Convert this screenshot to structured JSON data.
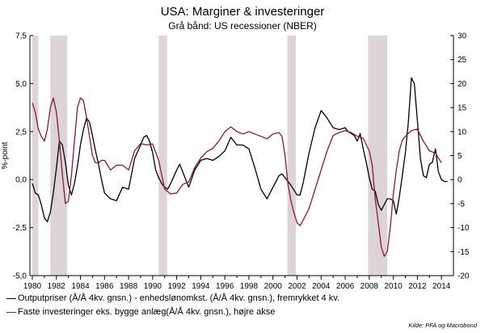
{
  "chart_data": {
    "type": "line",
    "title": "USA: Marginer & investeringer",
    "subtitle": "Grå bånd: US recessioner (NBER)",
    "ylabel_left": "%-point",
    "ylabel_right": "",
    "xlabel": "",
    "source": "Kilde: PFA og Macrobond",
    "xlim": [
      1979.8,
      2015.0
    ],
    "ylim_left": [
      -5.0,
      7.5
    ],
    "ylim_right": [
      -20,
      30
    ],
    "x_ticks": [
      1980,
      1982,
      1984,
      1986,
      1988,
      1990,
      1992,
      1994,
      1996,
      1998,
      2000,
      2002,
      2004,
      2006,
      2008,
      2010,
      2012,
      2014
    ],
    "y_ticks_left": [
      "7,5",
      "5,0",
      "2,5",
      "0,0",
      "-2,5",
      "-5,0"
    ],
    "y_ticks_right": [
      "30",
      "25",
      "20",
      "15",
      "10",
      "5",
      "0",
      "-5",
      "-10",
      "-15",
      "-20"
    ],
    "grid": "none",
    "legend_position": "bottom-left",
    "recessions": [
      [
        1980.0,
        1980.5
      ],
      [
        1981.5,
        1982.9
      ],
      [
        1990.5,
        1991.2
      ],
      [
        2001.2,
        2001.9
      ],
      [
        2007.9,
        2009.5
      ]
    ],
    "series": [
      {
        "name": "Outputpriser (Å/Å 4kv. gnsn.) - enhedslønomkst. (Å/Å 4kv. gnsn.), fremrykket 4 kv.",
        "axis": "left",
        "color": "#000000",
        "x": [
          1980.0,
          1980.25,
          1980.5,
          1980.75,
          1981.0,
          1981.25,
          1981.5,
          1981.75,
          1982.0,
          1982.25,
          1982.5,
          1982.75,
          1983.0,
          1983.25,
          1983.5,
          1983.75,
          1984.0,
          1984.25,
          1984.5,
          1984.75,
          1985.0,
          1985.25,
          1985.5,
          1985.75,
          1986.0,
          1986.5,
          1987.0,
          1987.5,
          1988.0,
          1988.5,
          1989.0,
          1989.25,
          1989.5,
          1989.75,
          1990.0,
          1990.25,
          1990.5,
          1990.75,
          1991.0,
          1991.25,
          1991.5,
          1992.0,
          1992.25,
          1992.5,
          1993.0,
          1993.5,
          1994.0,
          1994.5,
          1995.0,
          1995.5,
          1996.0,
          1996.5,
          1997.0,
          1997.5,
          1998.0,
          1998.5,
          1999.0,
          1999.5,
          2000.0,
          2000.5,
          2000.75,
          2001.0,
          2001.5,
          2002.0,
          2002.25,
          2002.5,
          2003.0,
          2003.5,
          2004.0,
          2004.5,
          2005.0,
          2005.5,
          2006.0,
          2006.25,
          2006.5,
          2006.75,
          2007.0,
          2007.25,
          2007.5,
          2007.75,
          2008.0,
          2008.25,
          2008.5,
          2008.75,
          2009.0,
          2009.25,
          2009.5,
          2009.75,
          2010.0,
          2010.25,
          2010.5,
          2010.75,
          2011.0,
          2011.25,
          2011.5,
          2011.75,
          2012.0,
          2012.25,
          2012.5,
          2012.75,
          2013.0,
          2013.25,
          2013.5,
          2013.75,
          2014.0,
          2014.25,
          2014.5
        ],
        "values": [
          -0.2,
          -0.7,
          -0.8,
          -1.3,
          -2.0,
          -2.2,
          -1.7,
          -0.7,
          0.6,
          2.0,
          1.8,
          0.9,
          -0.3,
          -0.8,
          -0.2,
          0.7,
          1.8,
          2.6,
          3.2,
          3.0,
          2.3,
          1.5,
          0.8,
          0.0,
          -0.7,
          -1.0,
          -1.1,
          -0.4,
          -0.5,
          1.1,
          1.8,
          2.2,
          2.3,
          2.0,
          1.4,
          0.5,
          0.1,
          -0.2,
          -0.4,
          -0.5,
          -0.2,
          0.5,
          0.8,
          0.4,
          -0.4,
          0.5,
          1.0,
          1.1,
          1.0,
          1.2,
          1.5,
          2.2,
          1.8,
          1.8,
          1.6,
          0.6,
          -0.5,
          -1.0,
          -0.4,
          0.2,
          0.3,
          0.1,
          -0.3,
          -0.8,
          -0.8,
          -0.2,
          1.4,
          2.7,
          3.6,
          3.2,
          2.7,
          2.6,
          2.7,
          2.5,
          2.4,
          2.3,
          2.0,
          2.4,
          1.6,
          0.9,
          0.1,
          -0.5,
          -0.6,
          -1.3,
          -1.6,
          -1.3,
          -1.0,
          -1.0,
          -1.1,
          -1.8,
          -0.9,
          0.2,
          1.4,
          3.0,
          5.3,
          5.0,
          3.1,
          1.1,
          0.2,
          0.1,
          0.8,
          0.9,
          1.6,
          0.4,
          0.0,
          -0.1,
          -0.1
        ]
      },
      {
        "name": "Faste investeringer eks. bygge anlæg(Å/Å 4kv. gnsn.), højre akse",
        "axis": "right",
        "color": "#8b1a2a",
        "x": [
          1980.0,
          1980.25,
          1980.5,
          1980.75,
          1981.0,
          1981.25,
          1981.5,
          1981.75,
          1982.0,
          1982.25,
          1982.5,
          1982.75,
          1983.0,
          1983.25,
          1983.5,
          1983.75,
          1984.0,
          1984.25,
          1984.5,
          1984.75,
          1985.0,
          1985.25,
          1985.5,
          1985.75,
          1986.0,
          1986.5,
          1987.0,
          1987.5,
          1988.0,
          1988.5,
          1989.0,
          1989.5,
          1990.0,
          1990.5,
          1991.0,
          1991.5,
          1992.0,
          1992.5,
          1993.0,
          1993.5,
          1994.0,
          1994.5,
          1995.0,
          1995.5,
          1996.0,
          1996.5,
          1997.0,
          1997.5,
          1998.0,
          1998.5,
          1999.0,
          1999.5,
          2000.0,
          2000.5,
          2000.75,
          2001.0,
          2001.25,
          2001.5,
          2001.75,
          2002.0,
          2002.25,
          2002.5,
          2003.0,
          2003.5,
          2004.0,
          2004.5,
          2005.0,
          2005.5,
          2006.0,
          2006.5,
          2007.0,
          2007.5,
          2008.0,
          2008.25,
          2008.5,
          2008.75,
          2009.0,
          2009.25,
          2009.5,
          2009.75,
          2010.0,
          2010.25,
          2010.5,
          2010.75,
          2011.0,
          2011.5,
          2012.0,
          2012.5,
          2013.0,
          2013.5,
          2014.0
        ],
        "values": [
          16,
          14,
          10.5,
          9,
          8,
          10.5,
          15,
          17,
          14,
          8,
          1,
          -5,
          -4.5,
          1,
          8,
          15,
          17,
          16.5,
          13,
          9,
          5,
          3.5,
          3.5,
          4,
          4,
          2,
          3,
          3,
          2,
          6,
          7.5,
          7.2,
          7.4,
          4,
          -2,
          -3,
          -2.8,
          -1,
          -0.5,
          2.5,
          4.5,
          5.8,
          6.5,
          8,
          10,
          11,
          10,
          9.5,
          10,
          9.5,
          9,
          8.5,
          9.5,
          9.8,
          9,
          5,
          -1,
          -4.5,
          -7,
          -9,
          -9.6,
          -8.5,
          -6,
          -2,
          2,
          6,
          9.2,
          9.8,
          10.2,
          9.8,
          9,
          8.6,
          6,
          3,
          -4,
          -9,
          -14,
          -16,
          -15,
          -10,
          -3,
          2,
          6,
          8.2,
          9,
          10.2,
          10.5,
          8,
          6,
          5.5,
          3.5
        ]
      }
    ]
  }
}
